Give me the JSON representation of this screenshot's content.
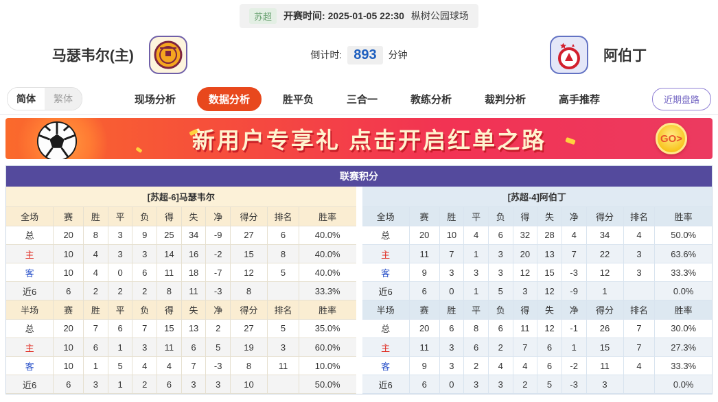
{
  "top_bar": {
    "league": "苏超",
    "kickoff_label": "开赛时间:",
    "kickoff_time": "2025-01-05 22:30",
    "venue": "枞树公园球场"
  },
  "header": {
    "home_team": "马瑟韦尔(主)",
    "away_team": "阿伯丁",
    "countdown_label": "倒计时:",
    "countdown_value": "893",
    "countdown_unit": "分钟"
  },
  "nav": {
    "lang_simplified": "简体",
    "lang_traditional": "繁体",
    "tabs": [
      {
        "label": "现场分析",
        "active": false
      },
      {
        "label": "数据分析",
        "active": true
      },
      {
        "label": "胜平负",
        "active": false
      },
      {
        "label": "三合一",
        "active": false
      },
      {
        "label": "教练分析",
        "active": false
      },
      {
        "label": "裁判分析",
        "active": false
      },
      {
        "label": "高手推荐",
        "active": false
      }
    ],
    "recent_button": "近期盘路"
  },
  "banner": {
    "text": "新用户专享礼  点击开启红单之路",
    "go_label": "GO>"
  },
  "stats": {
    "title": "联赛积分",
    "columns_full": [
      "全场",
      "赛",
      "胜",
      "平",
      "负",
      "得",
      "失",
      "净",
      "得分",
      "排名",
      "胜率"
    ],
    "columns_half": [
      "半场",
      "赛",
      "胜",
      "平",
      "负",
      "得",
      "失",
      "净",
      "得分",
      "排名",
      "胜率"
    ],
    "home": {
      "header": "[苏超-6]马瑟韦尔",
      "full_rows": [
        [
          "总",
          "20",
          "8",
          "3",
          "9",
          "25",
          "34",
          "-9",
          "27",
          "6",
          "40.0%"
        ],
        [
          "主",
          "10",
          "4",
          "3",
          "3",
          "14",
          "16",
          "-2",
          "15",
          "8",
          "40.0%"
        ],
        [
          "客",
          "10",
          "4",
          "0",
          "6",
          "11",
          "18",
          "-7",
          "12",
          "5",
          "40.0%"
        ],
        [
          "近6",
          "6",
          "2",
          "2",
          "2",
          "8",
          "11",
          "-3",
          "8",
          "",
          "33.3%"
        ]
      ],
      "half_rows": [
        [
          "总",
          "20",
          "7",
          "6",
          "7",
          "15",
          "13",
          "2",
          "27",
          "5",
          "35.0%"
        ],
        [
          "主",
          "10",
          "6",
          "1",
          "3",
          "11",
          "6",
          "5",
          "19",
          "3",
          "60.0%"
        ],
        [
          "客",
          "10",
          "1",
          "5",
          "4",
          "4",
          "7",
          "-3",
          "8",
          "11",
          "10.0%"
        ],
        [
          "近6",
          "6",
          "3",
          "1",
          "2",
          "6",
          "3",
          "3",
          "10",
          "",
          "50.0%"
        ]
      ]
    },
    "away": {
      "header": "[苏超-4]阿伯丁",
      "full_rows": [
        [
          "总",
          "20",
          "10",
          "4",
          "6",
          "32",
          "28",
          "4",
          "34",
          "4",
          "50.0%"
        ],
        [
          "主",
          "11",
          "7",
          "1",
          "3",
          "20",
          "13",
          "7",
          "22",
          "3",
          "63.6%"
        ],
        [
          "客",
          "9",
          "3",
          "3",
          "3",
          "12",
          "15",
          "-3",
          "12",
          "3",
          "33.3%"
        ],
        [
          "近6",
          "6",
          "0",
          "1",
          "5",
          "3",
          "12",
          "-9",
          "1",
          "",
          "0.0%"
        ]
      ],
      "half_rows": [
        [
          "总",
          "20",
          "6",
          "8",
          "6",
          "11",
          "12",
          "-1",
          "26",
          "7",
          "30.0%"
        ],
        [
          "主",
          "11",
          "3",
          "6",
          "2",
          "7",
          "6",
          "1",
          "15",
          "7",
          "27.3%"
        ],
        [
          "客",
          "9",
          "3",
          "2",
          "4",
          "4",
          "6",
          "-2",
          "11",
          "4",
          "33.3%"
        ],
        [
          "近6",
          "6",
          "0",
          "3",
          "3",
          "2",
          "5",
          "-3",
          "3",
          "",
          "0.0%"
        ]
      ]
    }
  },
  "colors": {
    "title_purple": "#544a9d",
    "active_tab_orange": "#e8481d",
    "home_header_cream": "#faedd2",
    "away_header_blue": "#dde8f1",
    "home_label_red": "#e02a20",
    "away_label_blue": "#2a52c9",
    "countdown_blue": "#1e5fbf",
    "banner_gradient": [
      "#fa6a2c",
      "#ec3a60"
    ],
    "league_badge_green": "#6ca374"
  }
}
